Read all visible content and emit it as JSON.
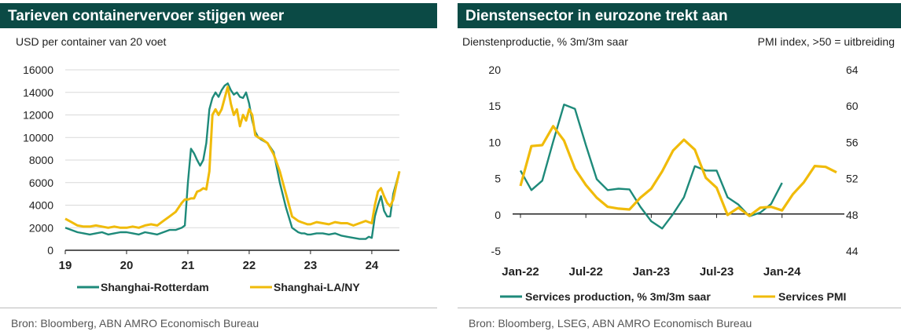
{
  "colors": {
    "header_bg": "#0b4a45",
    "teal": "#1e8a7a",
    "gold": "#f0bb0a",
    "grid": "#d9d9d9"
  },
  "left_panel": {
    "title": "Tarieven containervervoer stijgen weer",
    "axis_note": "USD per container van 20 voet",
    "source": "Bron: Bloomberg, ABN AMRO Economisch Bureau"
  },
  "right_panel": {
    "title": "Dienstensector in eurozone trekt aan",
    "left_axis_note": "Dienstenproductie, % 3m/3m saar",
    "right_axis_note": "PMI index, >50 = uitbreiding",
    "source": "Bron: Bloomberg, LSEG, ABN AMRO Economisch Bureau"
  },
  "chart_data": [
    {
      "type": "line",
      "title": "Tarieven containervervoer stijgen weer",
      "ylabel": "USD per container van 20 voet",
      "ylim": [
        0,
        16000
      ],
      "yticks": [
        0,
        2000,
        4000,
        6000,
        8000,
        10000,
        12000,
        14000,
        16000
      ],
      "ytick_labels": [
        "0",
        "2000",
        "4000",
        "6000",
        "8000",
        "10000",
        "12000",
        "14000",
        "16000"
      ],
      "xlim": [
        2019,
        2024.45
      ],
      "xticks": [
        2019,
        2020,
        2021,
        2022,
        2023,
        2024
      ],
      "xtick_labels": [
        "19",
        "20",
        "21",
        "22",
        "23",
        "24"
      ],
      "grid": true,
      "legend": "bottom",
      "series": [
        {
          "name": "Shanghai-Rotterdam",
          "color": "#1e8a7a",
          "x": [
            2019,
            2019.1,
            2019.2,
            2019.3,
            2019.4,
            2019.5,
            2019.6,
            2019.7,
            2019.8,
            2019.9,
            2020,
            2020.1,
            2020.2,
            2020.3,
            2020.4,
            2020.5,
            2020.6,
            2020.7,
            2020.8,
            2020.9,
            2020.95,
            2021,
            2021.05,
            2021.1,
            2021.15,
            2021.2,
            2021.25,
            2021.3,
            2021.35,
            2021.4,
            2021.45,
            2021.5,
            2021.55,
            2021.6,
            2021.65,
            2021.7,
            2021.75,
            2021.8,
            2021.85,
            2021.9,
            2021.95,
            2022,
            2022.05,
            2022.1,
            2022.15,
            2022.2,
            2022.3,
            2022.4,
            2022.5,
            2022.6,
            2022.7,
            2022.8,
            2022.85,
            2022.9,
            2022.95,
            2023,
            2023.1,
            2023.2,
            2023.3,
            2023.4,
            2023.5,
            2023.6,
            2023.7,
            2023.8,
            2023.9,
            2023.95,
            2024,
            2024.05,
            2024.1,
            2024.15,
            2024.2,
            2024.25,
            2024.3,
            2024.35,
            2024.4,
            2024.45
          ],
          "values": [
            2000,
            1800,
            1600,
            1500,
            1400,
            1500,
            1600,
            1400,
            1500,
            1600,
            1600,
            1500,
            1400,
            1600,
            1500,
            1400,
            1600,
            1800,
            1800,
            2000,
            2200,
            6000,
            9000,
            8600,
            8000,
            7500,
            8000,
            9500,
            12500,
            13500,
            14000,
            13600,
            14200,
            14600,
            14800,
            14200,
            13800,
            14000,
            13600,
            13500,
            14000,
            13000,
            11500,
            10500,
            10000,
            9800,
            9500,
            8700,
            6000,
            3800,
            2000,
            1600,
            1500,
            1500,
            1400,
            1400,
            1500,
            1500,
            1400,
            1500,
            1300,
            1200,
            1100,
            1000,
            1000,
            1200,
            1100,
            3000,
            4000,
            4800,
            3500,
            3000,
            3000,
            5000,
            6000,
            7000
          ]
        },
        {
          "name": "Shanghai-LA/NY",
          "color": "#f0bb0a",
          "x": [
            2019,
            2019.1,
            2019.2,
            2019.3,
            2019.4,
            2019.5,
            2019.6,
            2019.7,
            2019.8,
            2019.9,
            2020,
            2020.1,
            2020.2,
            2020.3,
            2020.4,
            2020.5,
            2020.6,
            2020.7,
            2020.8,
            2020.9,
            2020.95,
            2021,
            2021.05,
            2021.1,
            2021.15,
            2021.2,
            2021.25,
            2021.3,
            2021.35,
            2021.4,
            2021.45,
            2021.5,
            2021.55,
            2021.6,
            2021.65,
            2021.7,
            2021.75,
            2021.8,
            2021.85,
            2021.9,
            2021.95,
            2022,
            2022.05,
            2022.1,
            2022.15,
            2022.2,
            2022.3,
            2022.4,
            2022.5,
            2022.6,
            2022.7,
            2022.8,
            2022.85,
            2022.9,
            2022.95,
            2023,
            2023.1,
            2023.2,
            2023.3,
            2023.4,
            2023.5,
            2023.6,
            2023.7,
            2023.8,
            2023.9,
            2023.95,
            2024,
            2024.05,
            2024.1,
            2024.15,
            2024.2,
            2024.25,
            2024.3,
            2024.35,
            2024.4,
            2024.45
          ],
          "values": [
            2800,
            2500,
            2200,
            2100,
            2100,
            2200,
            2100,
            2000,
            2100,
            2000,
            2000,
            2100,
            2000,
            2200,
            2300,
            2200,
            2600,
            3000,
            3400,
            4200,
            4500,
            4500,
            4600,
            4600,
            5200,
            5300,
            5500,
            5400,
            7000,
            12000,
            12500,
            12000,
            12500,
            13500,
            14500,
            13000,
            12000,
            12500,
            11000,
            12000,
            11500,
            12500,
            12000,
            10200,
            10000,
            9900,
            9500,
            8500,
            7000,
            5000,
            3000,
            2600,
            2500,
            2400,
            2300,
            2300,
            2500,
            2400,
            2300,
            2500,
            2400,
            2400,
            2200,
            2400,
            2600,
            2500,
            2400,
            4000,
            5200,
            5500,
            4800,
            4200,
            3900,
            4500,
            5800,
            7000
          ]
        }
      ]
    },
    {
      "type": "line",
      "title": "Dienstensector in eurozone trekt aan",
      "ylabel": "Dienstenproductie, % 3m/3m saar",
      "ylabel_right": "PMI index, >50 = uitbreiding",
      "ylim": [
        -5,
        20
      ],
      "yticks": [
        -5,
        0,
        5,
        10,
        15,
        20
      ],
      "ytick_labels": [
        "-5",
        "0",
        "5",
        "10",
        "15",
        "20"
      ],
      "ylim_right": [
        44,
        64
      ],
      "yticks_right": [
        44,
        48,
        52,
        56,
        60,
        64
      ],
      "ytick_labels_right": [
        "44",
        "48",
        "52",
        "56",
        "60",
        "64"
      ],
      "xlim": [
        0,
        29
      ],
      "xticks": [
        0,
        6,
        12,
        18,
        24
      ],
      "xtick_labels": [
        "Jan-22",
        "Jul-22",
        "Jan-23",
        "Jul-23",
        "Jan-24"
      ],
      "grid": false,
      "legend": "bottom",
      "series": [
        {
          "name": "Services production, % 3m/3m saar",
          "axis": "left",
          "color": "#1e8a7a",
          "x": [
            0,
            1,
            2,
            3,
            4,
            5,
            6,
            7,
            8,
            9,
            10,
            11,
            12,
            13,
            14,
            15,
            16,
            17,
            18,
            19,
            20,
            21,
            22,
            23,
            24
          ],
          "values": [
            6,
            3.3,
            4.6,
            10,
            15.1,
            14.5,
            9.5,
            4.8,
            3.3,
            3.5,
            3.4,
            1,
            -1,
            -2,
            0,
            2.3,
            6.6,
            6,
            6,
            2.3,
            1.3,
            -0.3,
            0.2,
            1.4,
            4.3
          ]
        },
        {
          "name": "Services PMI",
          "axis": "right",
          "color": "#f0bb0a",
          "x": [
            0,
            1,
            2,
            3,
            4,
            5,
            6,
            7,
            8,
            9,
            10,
            11,
            12,
            13,
            14,
            15,
            16,
            17,
            18,
            19,
            20,
            21,
            22,
            23,
            24,
            25,
            26,
            27,
            28,
            29
          ],
          "values": [
            51.1,
            55.5,
            55.6,
            57.7,
            56.1,
            53.0,
            51.2,
            49.8,
            48.8,
            48.6,
            48.5,
            49.8,
            50.8,
            52.7,
            55.0,
            56.2,
            55.1,
            52.0,
            50.9,
            47.9,
            48.7,
            47.8,
            48.7,
            48.8,
            48.4,
            50.2,
            51.5,
            53.3,
            53.2,
            52.6
          ]
        }
      ]
    }
  ]
}
